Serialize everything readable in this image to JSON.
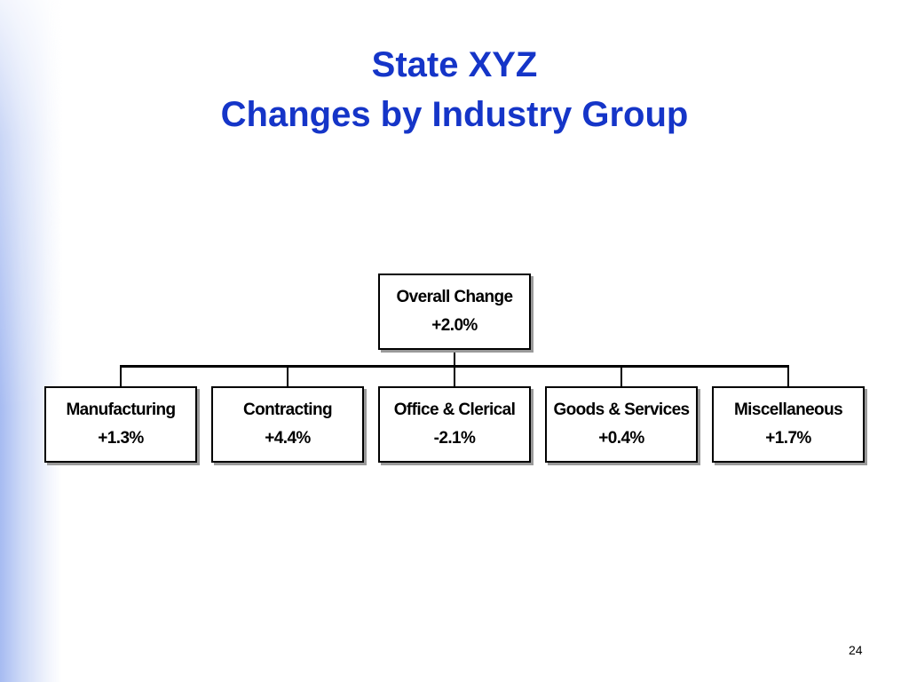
{
  "slide": {
    "title_line_1": "State XYZ",
    "title_line_2": "Changes by Industry Group",
    "page_number": "24"
  },
  "org_chart": {
    "root": {
      "label": "Overall Change",
      "value": "+2.0%"
    },
    "children": [
      {
        "label": "Manufacturing",
        "value": "+1.3%"
      },
      {
        "label": "Contracting",
        "value": "+4.4%"
      },
      {
        "label": "Office & Clerical",
        "value": "-2.1%"
      },
      {
        "label": "Goods & Services",
        "value": "+0.4%"
      },
      {
        "label": "Miscellaneous",
        "value": "+1.7%"
      }
    ]
  },
  "colors": {
    "title": "#1535c8",
    "box_border": "#000000",
    "box_shadow": "#9a9a9a",
    "left_accent": "#9db4f0"
  }
}
